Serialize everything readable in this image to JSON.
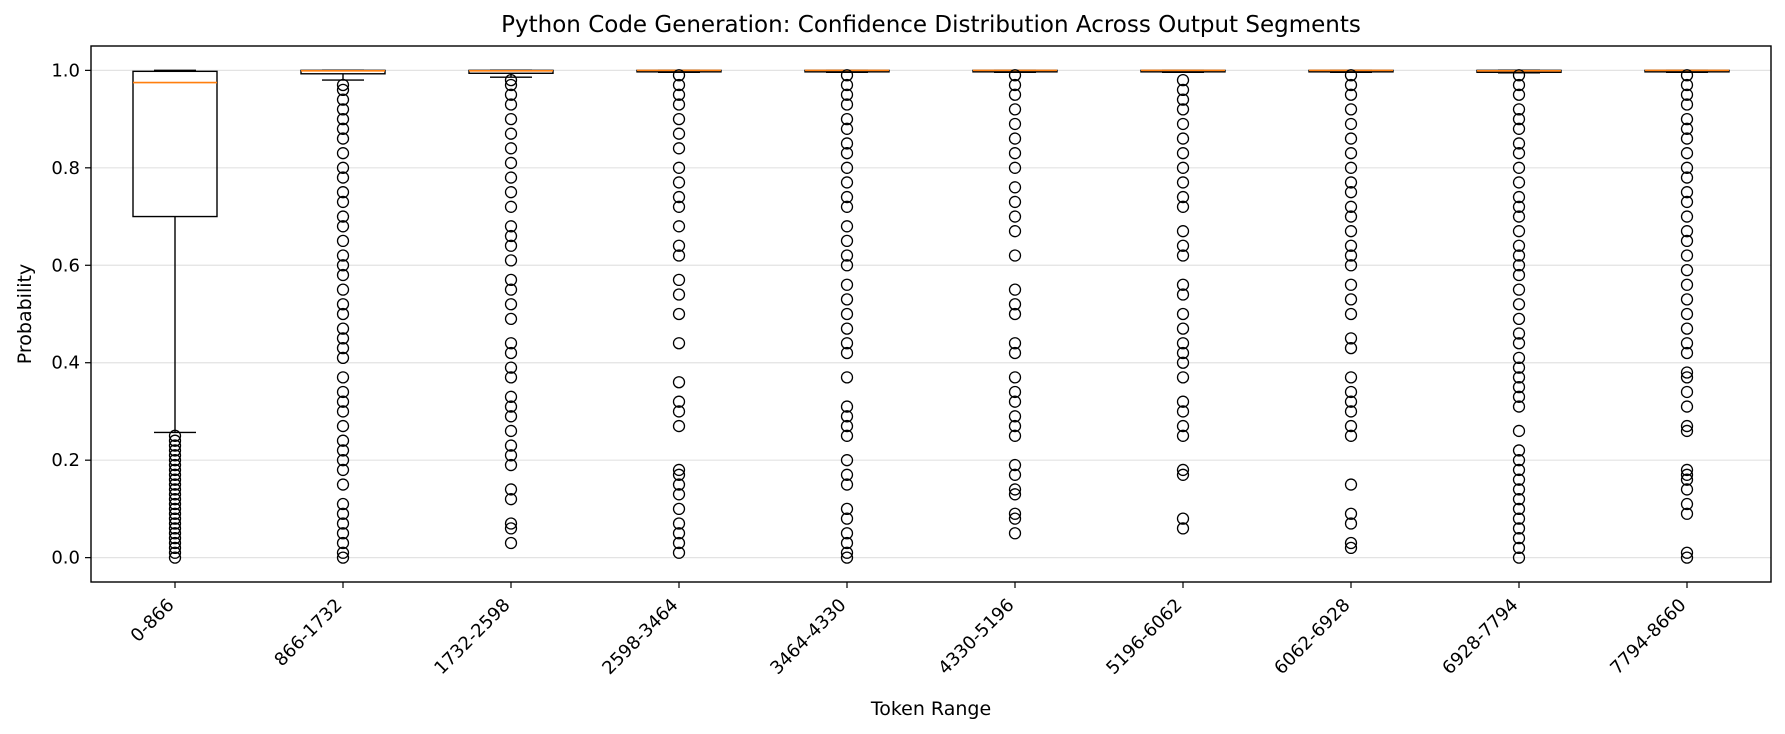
{
  "chart_data": {
    "type": "box",
    "title": "Python Code Generation: Confidence Distribution Across Output Segments",
    "xlabel": "Token Range",
    "ylabel": "Probability",
    "ylim": [
      -0.05,
      1.05
    ],
    "yticks": [
      0.0,
      0.2,
      0.4,
      0.6,
      0.8,
      1.0
    ],
    "ytick_labels": [
      "0.0",
      "0.2",
      "0.4",
      "0.6",
      "0.8",
      "1.0"
    ],
    "grid": "horizontal",
    "colors": {
      "median": "#ff7f0e",
      "box": "#000000",
      "grid": "#e3e3e3"
    },
    "categories": [
      "0-866",
      "866-1732",
      "1732-2598",
      "2598-3464",
      "3464-4330",
      "4330-5196",
      "5196-6062",
      "6062-6928",
      "6928-7794",
      "7794-8660"
    ],
    "boxes": [
      {
        "q1": 0.7,
        "median": 0.975,
        "q3": 0.998,
        "whisker_low": 0.257,
        "whisker_high": 1.0,
        "outliers": [
          0.0,
          0.01,
          0.02,
          0.03,
          0.04,
          0.05,
          0.06,
          0.07,
          0.08,
          0.09,
          0.1,
          0.11,
          0.12,
          0.13,
          0.14,
          0.15,
          0.16,
          0.17,
          0.18,
          0.19,
          0.2,
          0.21,
          0.22,
          0.23,
          0.24,
          0.25
        ]
      },
      {
        "q1": 0.993,
        "median": 0.999,
        "q3": 1.0,
        "whisker_low": 0.98,
        "whisker_high": 1.0,
        "outliers": [
          0.0,
          0.01,
          0.03,
          0.05,
          0.07,
          0.09,
          0.11,
          0.15,
          0.18,
          0.2,
          0.22,
          0.24,
          0.27,
          0.3,
          0.32,
          0.34,
          0.37,
          0.41,
          0.43,
          0.45,
          0.47,
          0.5,
          0.52,
          0.55,
          0.58,
          0.6,
          0.62,
          0.65,
          0.68,
          0.7,
          0.73,
          0.75,
          0.78,
          0.8,
          0.83,
          0.86,
          0.88,
          0.9,
          0.92,
          0.94,
          0.96,
          0.97
        ]
      },
      {
        "q1": 0.994,
        "median": 0.999,
        "q3": 1.0,
        "whisker_low": 0.986,
        "whisker_high": 1.0,
        "outliers": [
          0.03,
          0.06,
          0.07,
          0.12,
          0.14,
          0.19,
          0.21,
          0.23,
          0.26,
          0.29,
          0.31,
          0.33,
          0.37,
          0.39,
          0.42,
          0.44,
          0.49,
          0.52,
          0.55,
          0.57,
          0.61,
          0.64,
          0.66,
          0.68,
          0.72,
          0.75,
          0.78,
          0.81,
          0.84,
          0.87,
          0.9,
          0.93,
          0.95,
          0.97,
          0.98
        ]
      },
      {
        "q1": 0.997,
        "median": 1.0,
        "q3": 1.0,
        "whisker_low": 0.996,
        "whisker_high": 1.0,
        "outliers": [
          0.01,
          0.03,
          0.05,
          0.07,
          0.1,
          0.13,
          0.15,
          0.17,
          0.18,
          0.27,
          0.3,
          0.32,
          0.36,
          0.44,
          0.5,
          0.54,
          0.57,
          0.62,
          0.64,
          0.68,
          0.72,
          0.74,
          0.77,
          0.8,
          0.84,
          0.87,
          0.9,
          0.93,
          0.95,
          0.97,
          0.99
        ]
      },
      {
        "q1": 0.997,
        "median": 1.0,
        "q3": 1.0,
        "whisker_low": 0.996,
        "whisker_high": 1.0,
        "outliers": [
          0.0,
          0.01,
          0.03,
          0.05,
          0.08,
          0.1,
          0.15,
          0.17,
          0.2,
          0.25,
          0.27,
          0.29,
          0.31,
          0.37,
          0.42,
          0.44,
          0.47,
          0.5,
          0.53,
          0.56,
          0.6,
          0.62,
          0.65,
          0.68,
          0.72,
          0.74,
          0.77,
          0.8,
          0.83,
          0.85,
          0.88,
          0.9,
          0.93,
          0.95,
          0.97,
          0.99
        ]
      },
      {
        "q1": 0.997,
        "median": 1.0,
        "q3": 1.0,
        "whisker_low": 0.996,
        "whisker_high": 1.0,
        "outliers": [
          0.05,
          0.08,
          0.09,
          0.13,
          0.14,
          0.17,
          0.19,
          0.25,
          0.27,
          0.29,
          0.32,
          0.34,
          0.37,
          0.42,
          0.44,
          0.5,
          0.52,
          0.55,
          0.62,
          0.67,
          0.7,
          0.73,
          0.76,
          0.8,
          0.83,
          0.86,
          0.89,
          0.92,
          0.95,
          0.97,
          0.99
        ]
      },
      {
        "q1": 0.997,
        "median": 1.0,
        "q3": 1.0,
        "whisker_low": 0.996,
        "whisker_high": 1.0,
        "outliers": [
          0.06,
          0.08,
          0.17,
          0.18,
          0.25,
          0.27,
          0.3,
          0.32,
          0.37,
          0.4,
          0.42,
          0.44,
          0.47,
          0.5,
          0.54,
          0.56,
          0.62,
          0.64,
          0.67,
          0.72,
          0.74,
          0.77,
          0.8,
          0.83,
          0.86,
          0.89,
          0.92,
          0.94,
          0.96,
          0.98
        ]
      },
      {
        "q1": 0.997,
        "median": 1.0,
        "q3": 1.0,
        "whisker_low": 0.996,
        "whisker_high": 1.0,
        "outliers": [
          0.02,
          0.03,
          0.07,
          0.09,
          0.15,
          0.25,
          0.27,
          0.3,
          0.32,
          0.34,
          0.37,
          0.43,
          0.45,
          0.5,
          0.53,
          0.56,
          0.6,
          0.62,
          0.64,
          0.67,
          0.7,
          0.72,
          0.75,
          0.77,
          0.8,
          0.83,
          0.86,
          0.89,
          0.92,
          0.95,
          0.97,
          0.99
        ]
      },
      {
        "q1": 0.996,
        "median": 0.999,
        "q3": 1.0,
        "whisker_low": 0.995,
        "whisker_high": 1.0,
        "outliers": [
          0.0,
          0.02,
          0.04,
          0.06,
          0.08,
          0.1,
          0.12,
          0.14,
          0.16,
          0.18,
          0.2,
          0.22,
          0.26,
          0.31,
          0.33,
          0.35,
          0.37,
          0.39,
          0.41,
          0.44,
          0.46,
          0.49,
          0.52,
          0.55,
          0.58,
          0.6,
          0.62,
          0.64,
          0.67,
          0.7,
          0.72,
          0.74,
          0.77,
          0.8,
          0.83,
          0.85,
          0.88,
          0.9,
          0.92,
          0.95,
          0.97,
          0.99
        ]
      },
      {
        "q1": 0.997,
        "median": 1.0,
        "q3": 1.0,
        "whisker_low": 0.996,
        "whisker_high": 1.0,
        "outliers": [
          0.0,
          0.01,
          0.09,
          0.11,
          0.14,
          0.16,
          0.17,
          0.18,
          0.26,
          0.27,
          0.31,
          0.34,
          0.37,
          0.38,
          0.42,
          0.44,
          0.47,
          0.5,
          0.53,
          0.56,
          0.59,
          0.62,
          0.65,
          0.67,
          0.7,
          0.73,
          0.75,
          0.78,
          0.8,
          0.83,
          0.86,
          0.88,
          0.9,
          0.93,
          0.95,
          0.97,
          0.99
        ]
      }
    ]
  }
}
